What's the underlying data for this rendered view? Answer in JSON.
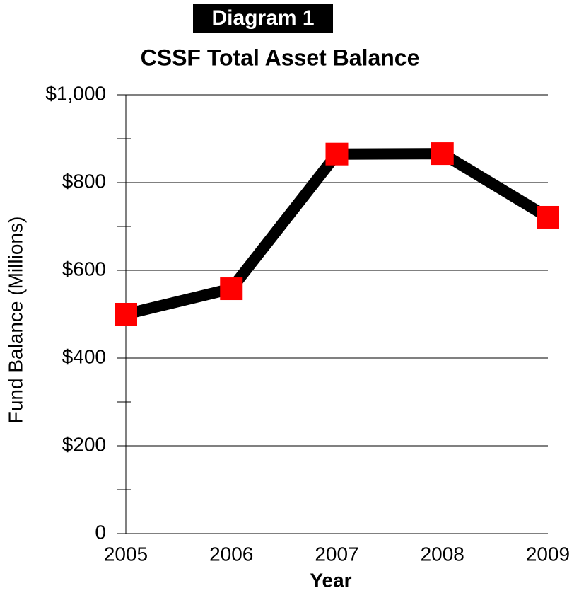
{
  "chart_data": {
    "type": "line",
    "badge": "Diagram 1",
    "title": "CSSF Total Asset Balance",
    "x_label": "Year",
    "y_label": "Fund Balance (Millions)",
    "categories": [
      "2005",
      "2006",
      "2007",
      "2008",
      "2009"
    ],
    "series": [
      {
        "name": "CSSF Total Asset Balance",
        "color": "#000000",
        "marker_color": "#ff0000",
        "values": [
          500,
          558,
          865,
          866,
          721
        ]
      }
    ],
    "ylim": [
      0,
      1000
    ],
    "yticks": [
      0,
      {
        "value": 200,
        "label": "$200"
      },
      {
        "value": 400,
        "label": "$400"
      },
      {
        "value": 600,
        "label": "$600"
      },
      {
        "value": 800,
        "label": "$800"
      },
      {
        "value": 1000,
        "label": "$1,000"
      }
    ],
    "minor_yticks": [
      100,
      300,
      500,
      700,
      900
    ],
    "grid": true
  }
}
